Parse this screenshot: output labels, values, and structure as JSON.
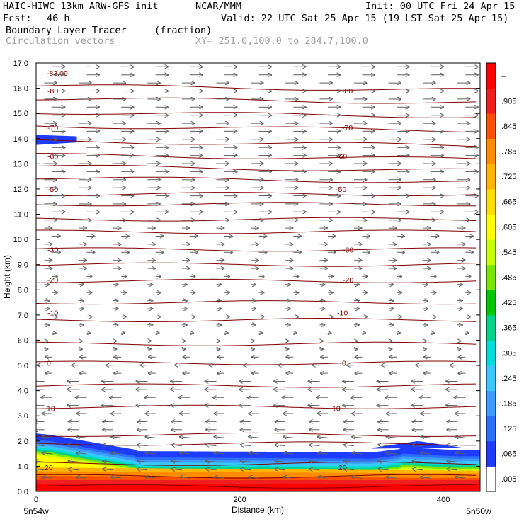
{
  "header": {
    "model": "HAIC-HIWC 13km ARW-GFS init",
    "org": "NCAR/MMM",
    "init": "Init: 00 UTC Fri 24 Apr 15",
    "fcst_label": "Fcst:",
    "fcst_value": "46 h",
    "valid": "Valid: 22 UTC Sat 25 Apr 15 (19 LST Sat 25 Apr 15)",
    "field": "Boundary Layer Tracer",
    "field_units": "(fraction)",
    "overlay": "Circulation vectors",
    "xy": "XY= 251.0,100.0 to 284.7,100.0"
  },
  "chart_data": {
    "type": "heatmap",
    "ylabel": "Height (km)",
    "xlabel": "Distance (km)",
    "x_ticks": [
      "0",
      "200",
      "400"
    ],
    "x_end_labels": [
      "5n54w",
      "5n50w"
    ],
    "x_range": [
      0,
      436
    ],
    "y_ticks": [
      "0.0",
      "1.0",
      "2.0",
      "3.0",
      "4.0",
      "5.0",
      "6.0",
      "7.0",
      "8.0",
      "9.0",
      "10.0",
      "11.0",
      "12.0",
      "13.0",
      "14.0",
      "15.0",
      "16.0",
      "17.0"
    ],
    "y_range": [
      0,
      17
    ],
    "colorbar": {
      "labels": [
        ".005",
        ".065",
        ".125",
        ".185",
        ".245",
        ".305",
        ".365",
        ".425",
        ".485",
        ".545",
        ".605",
        ".665",
        ".725",
        ".785",
        ".845",
        ".905",
        "–"
      ],
      "colors": [
        "#ffffff",
        "#1e3cff",
        "#2d6eff",
        "#3c9bff",
        "#3cc8ff",
        "#00dcdc",
        "#00d28c",
        "#00c800",
        "#78e600",
        "#c8ff00",
        "#ffff00",
        "#ffdc00",
        "#ffb400",
        "#ff8c00",
        "#ff5000",
        "#f01e1e",
        "#ff0000"
      ]
    },
    "contour_color": "#800000",
    "temperature_contours": [
      {
        "label": "-83.09"
      },
      {
        "label": "-80"
      },
      {
        "label": "-70"
      },
      {
        "label": "-60"
      },
      {
        "label": "-50"
      },
      {
        "label": "-30"
      },
      {
        "label": "-20"
      },
      {
        "label": "-10"
      },
      {
        "label": "0"
      },
      {
        "label": "10"
      },
      {
        "label": "20"
      }
    ]
  }
}
